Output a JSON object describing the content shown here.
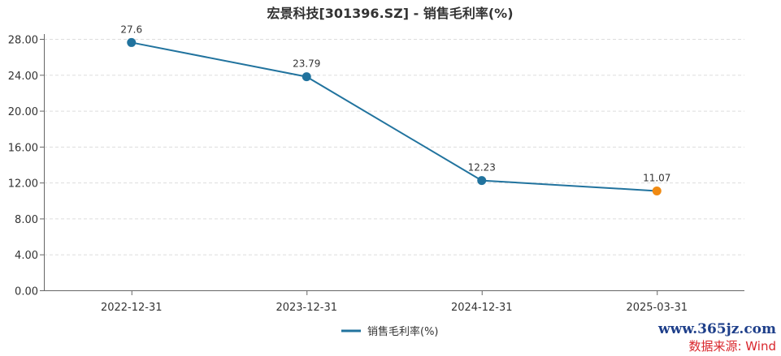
{
  "chart_data": {
    "type": "line",
    "title": "宏景科技[301396.SZ] - 销售毛利率(%)",
    "categories": [
      "2022-12-31",
      "2023-12-31",
      "2024-12-31",
      "2025-03-31"
    ],
    "series": [
      {
        "name": "销售毛利率(%)",
        "values": [
          27.6,
          23.79,
          12.23,
          11.07
        ],
        "labels": [
          "27.6",
          "23.79",
          "12.23",
          "11.07"
        ],
        "color": "#21739e",
        "last_point_color": "#f08a12"
      }
    ],
    "ylim": [
      0,
      28
    ],
    "yticks": [
      "0.00",
      "4.00",
      "8.00",
      "12.00",
      "16.00",
      "20.00",
      "24.00",
      "28.00"
    ],
    "grid": true,
    "legend": "bottom-center",
    "xlabel": "",
    "ylabel": ""
  },
  "watermark": {
    "site": "www.365jz.com",
    "source": "数据来源: Wind"
  }
}
